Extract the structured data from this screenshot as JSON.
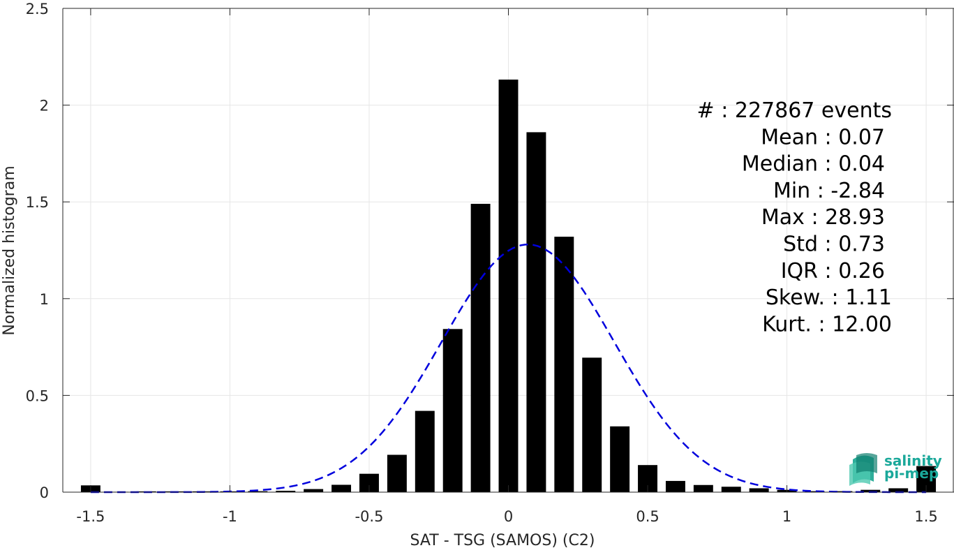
{
  "chart_data": {
    "type": "bar",
    "xlabel": "SAT - TSG (SAMOS) (C2)",
    "ylabel": "Normalized histogram",
    "xlim": [
      -1.6,
      1.6
    ],
    "ylim": [
      0,
      2.5
    ],
    "xticks": [
      "-1.5",
      "-1",
      "-0.5",
      "0",
      "0.5",
      "1",
      "1.5"
    ],
    "yticks": [
      "0",
      "0.5",
      "1",
      "1.5",
      "2",
      "2.5"
    ],
    "grid": true,
    "bar_width": 0.07,
    "bar_color": "#000000",
    "bars": {
      "x": [
        -1.5,
        -1.4,
        -1.3,
        -1.2,
        -1.1,
        -1.0,
        -0.9,
        -0.8,
        -0.7,
        -0.6,
        -0.5,
        -0.4,
        -0.3,
        -0.2,
        -0.1,
        0.0,
        0.1,
        0.2,
        0.3,
        0.4,
        0.5,
        0.6,
        0.7,
        0.8,
        0.9,
        1.0,
        1.1,
        1.2,
        1.3,
        1.4,
        1.5
      ],
      "values": [
        0.035,
        0.002,
        0.004,
        0.004,
        0.004,
        0.004,
        0.005,
        0.007,
        0.016,
        0.038,
        0.095,
        0.193,
        0.42,
        0.843,
        1.49,
        2.132,
        1.86,
        1.32,
        0.695,
        0.34,
        0.14,
        0.058,
        0.037,
        0.028,
        0.02,
        0.012,
        0.005,
        0.005,
        0.012,
        0.02,
        0.135
      ]
    },
    "fit_curve": {
      "style": "dashed",
      "color": "#0000dd",
      "mean": 0.07,
      "std": 0.31,
      "peak": 1.28,
      "x_range": [
        -1.5,
        1.5
      ]
    },
    "stats": [
      {
        "label": "#  :",
        "value": "227867 events"
      },
      {
        "label": "Mean :",
        "value": "0.07"
      },
      {
        "label": "Median :",
        "value": "0.04"
      },
      {
        "label": "Min :",
        "value": "-2.84"
      },
      {
        "label": "Max :",
        "value": "28.93"
      },
      {
        "label": "Std :",
        "value": "0.73"
      },
      {
        "label": "IQR :",
        "value": "0.26"
      },
      {
        "label": "Skew. :",
        "value": "1.11"
      },
      {
        "label": "Kurt. :",
        "value": "12.00"
      }
    ]
  },
  "logo": {
    "line1": "salinity",
    "line2": "pi-mep",
    "color": "#1aa89a"
  }
}
